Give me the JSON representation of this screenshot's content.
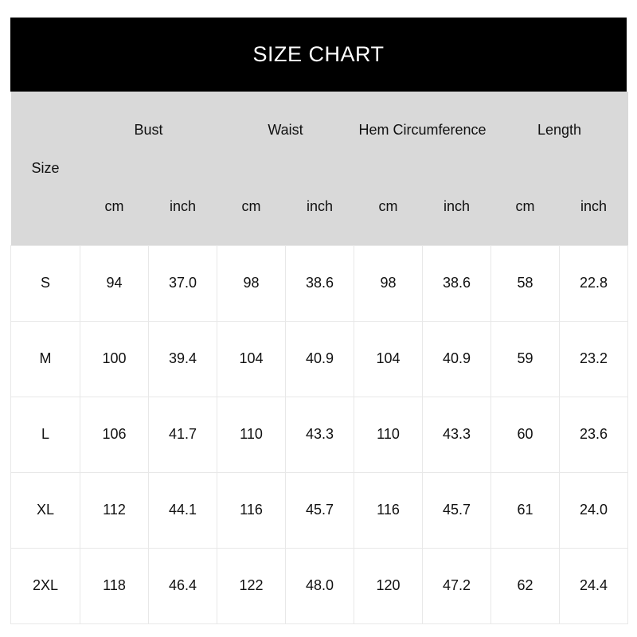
{
  "title": "SIZE CHART",
  "header": {
    "size_label": "Size",
    "groups": [
      "Bust",
      "Waist",
      "Hem Circumference",
      "Length"
    ],
    "units": [
      "cm",
      "inch",
      "cm",
      "inch",
      "cm",
      "inch",
      "cm",
      "inch"
    ]
  },
  "rows": [
    {
      "size": "S",
      "values": [
        "94",
        "37.0",
        "98",
        "38.6",
        "98",
        "38.6",
        "58",
        "22.8"
      ]
    },
    {
      "size": "M",
      "values": [
        "100",
        "39.4",
        "104",
        "40.9",
        "104",
        "40.9",
        "59",
        "23.2"
      ]
    },
    {
      "size": "L",
      "values": [
        "106",
        "41.7",
        "110",
        "43.3",
        "110",
        "43.3",
        "60",
        "23.6"
      ]
    },
    {
      "size": "XL",
      "values": [
        "112",
        "44.1",
        "116",
        "45.7",
        "116",
        "45.7",
        "61",
        "24.0"
      ]
    },
    {
      "size": "2XL",
      "values": [
        "118",
        "46.4",
        "122",
        "48.0",
        "120",
        "47.2",
        "62",
        "24.4"
      ]
    }
  ],
  "colors": {
    "title_bar_bg": "#000000",
    "title_text": "#ffffff",
    "header_bg": "#d9d9d9",
    "cell_border": "#e8e8e8",
    "text": "#111111"
  },
  "chart_data": {
    "type": "table",
    "title": "SIZE CHART",
    "row_header": "Size",
    "column_groups": [
      {
        "label": "Bust",
        "units": [
          "cm",
          "inch"
        ]
      },
      {
        "label": "Waist",
        "units": [
          "cm",
          "inch"
        ]
      },
      {
        "label": "Hem Circumference",
        "units": [
          "cm",
          "inch"
        ]
      },
      {
        "label": "Length",
        "units": [
          "cm",
          "inch"
        ]
      }
    ],
    "sizes": [
      "S",
      "M",
      "L",
      "XL",
      "2XL"
    ],
    "series": [
      {
        "name": "Bust cm",
        "values": [
          94,
          100,
          106,
          112,
          118
        ]
      },
      {
        "name": "Bust inch",
        "values": [
          37.0,
          39.4,
          41.7,
          44.1,
          46.4
        ]
      },
      {
        "name": "Waist cm",
        "values": [
          98,
          104,
          110,
          116,
          122
        ]
      },
      {
        "name": "Waist inch",
        "values": [
          38.6,
          40.9,
          43.3,
          45.7,
          48.0
        ]
      },
      {
        "name": "Hem Circumference cm",
        "values": [
          98,
          104,
          110,
          116,
          120
        ]
      },
      {
        "name": "Hem Circumference inch",
        "values": [
          38.6,
          40.9,
          43.3,
          45.7,
          47.2
        ]
      },
      {
        "name": "Length cm",
        "values": [
          58,
          59,
          60,
          61,
          62
        ]
      },
      {
        "name": "Length inch",
        "values": [
          22.8,
          23.2,
          23.6,
          24.0,
          24.4
        ]
      }
    ]
  }
}
